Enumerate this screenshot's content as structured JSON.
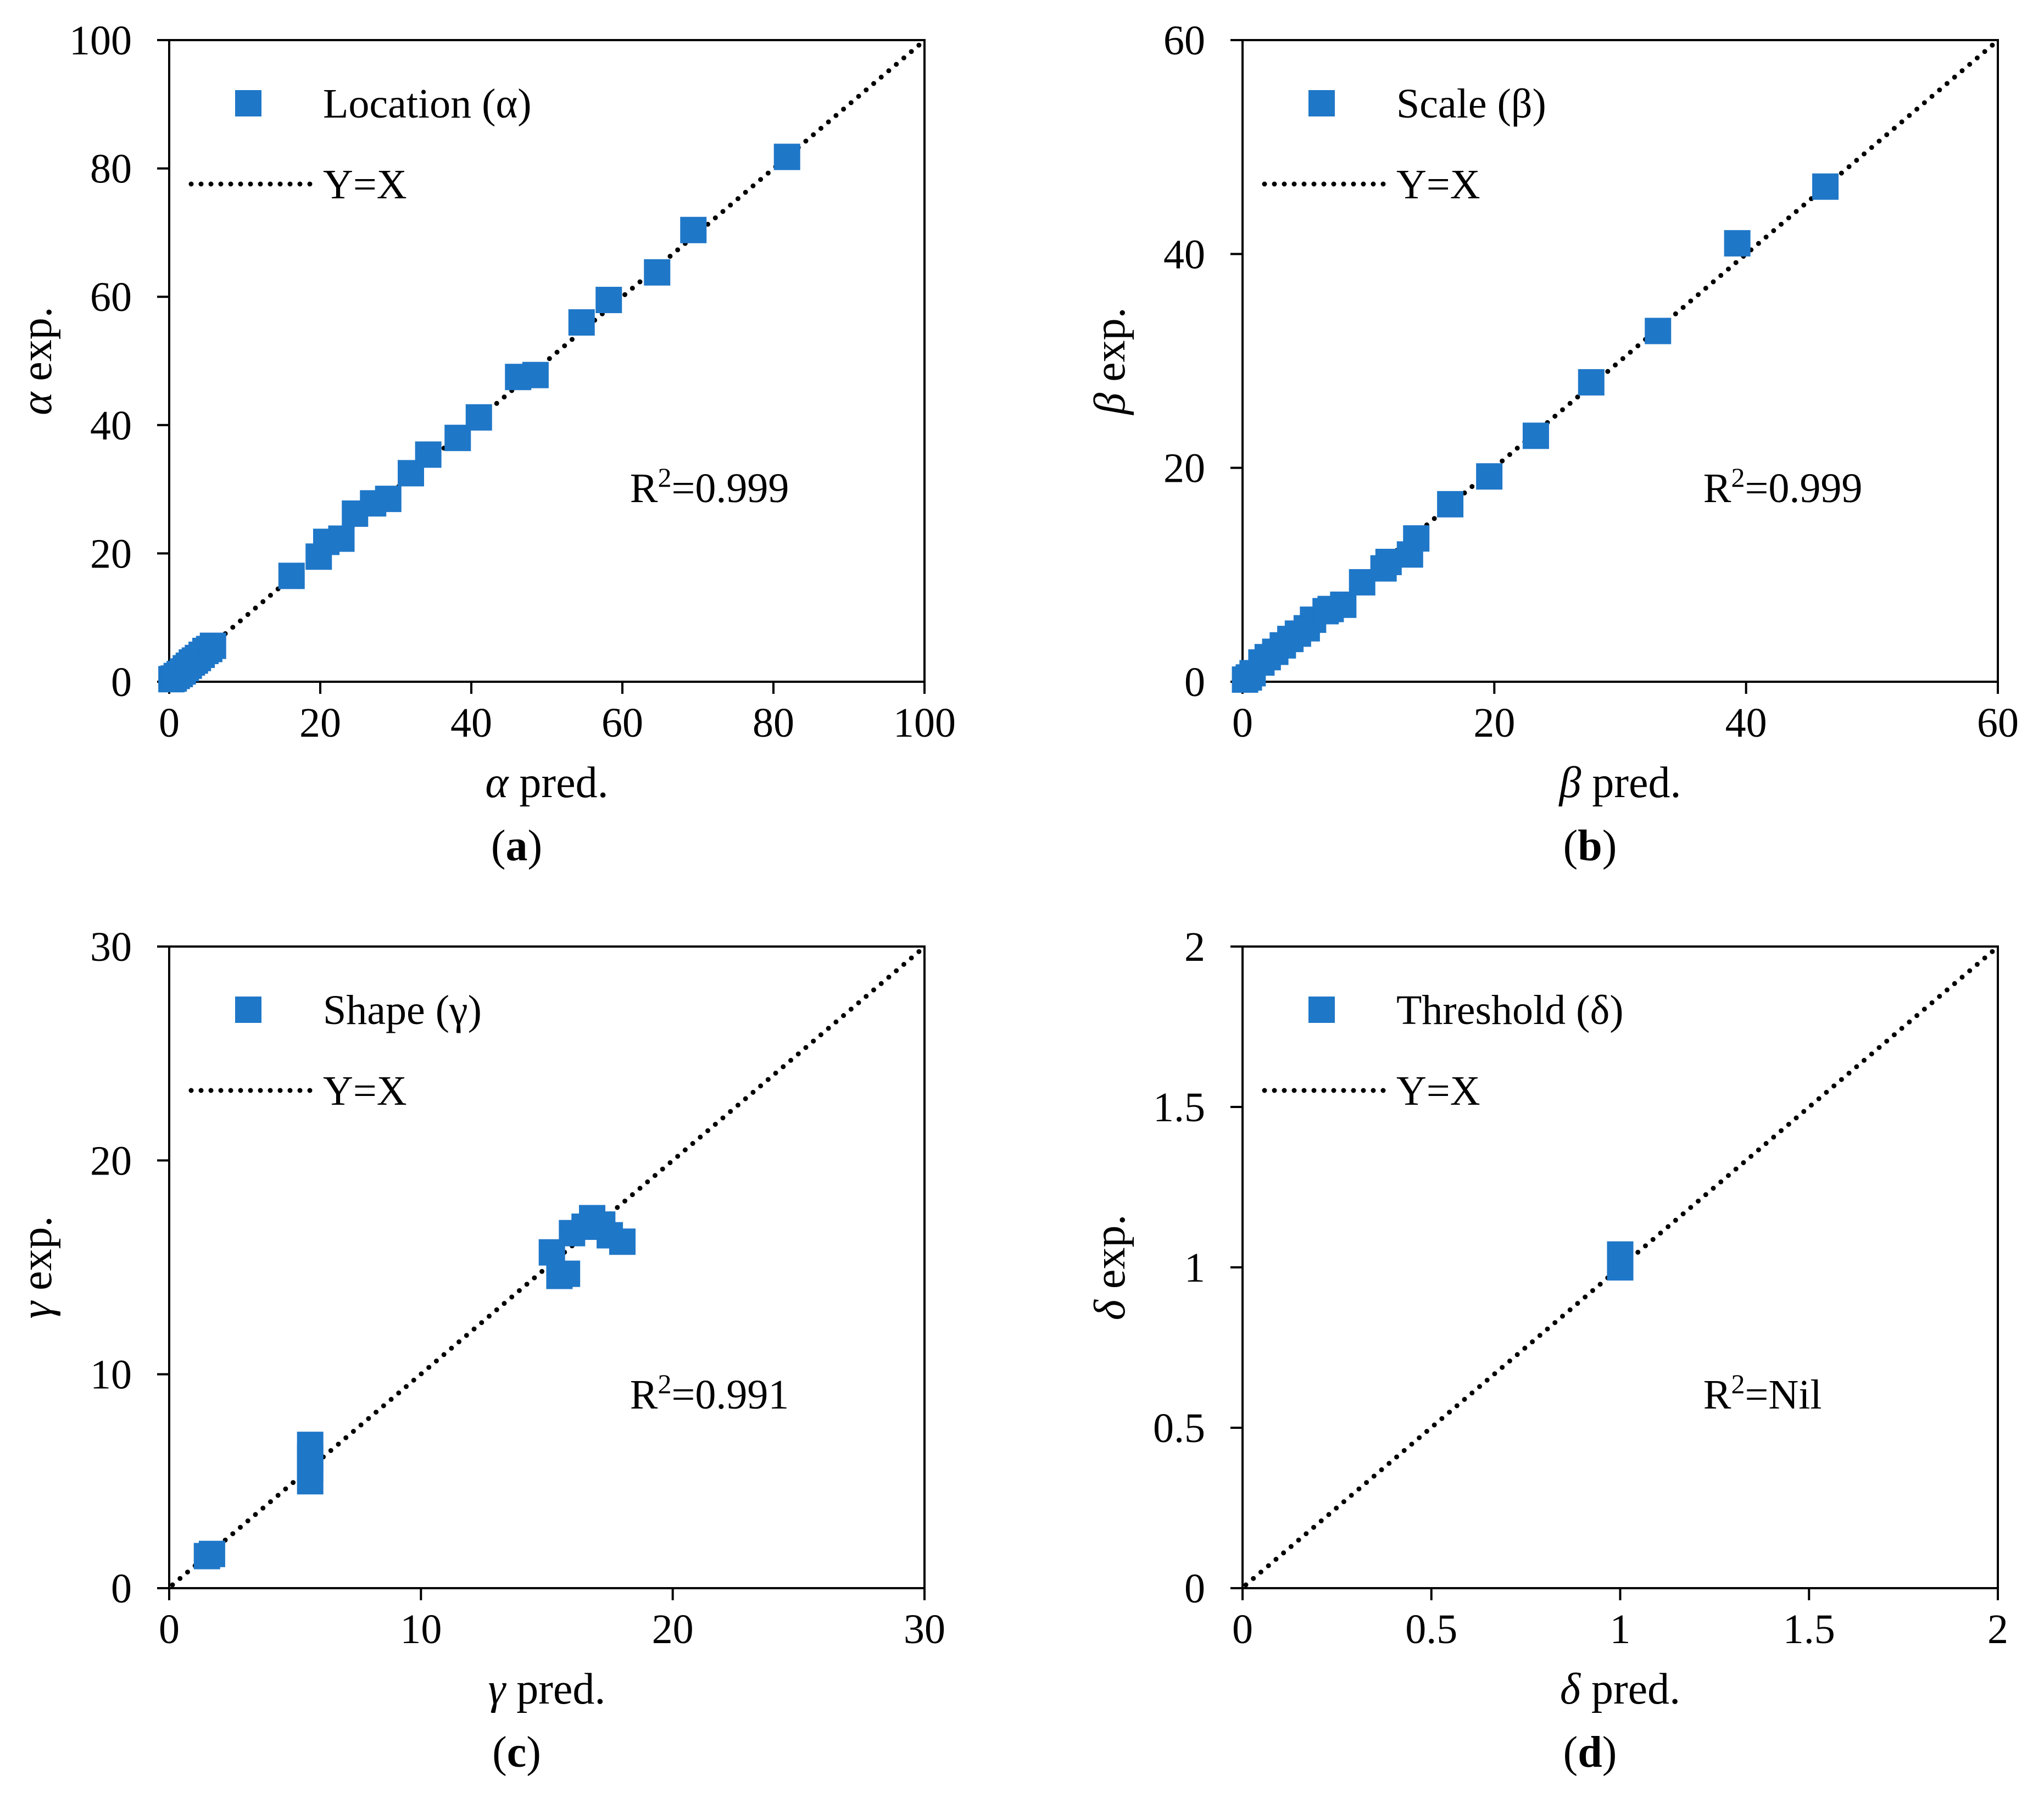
{
  "colors": {
    "marker": "#1f77c8",
    "axis": "#000000",
    "reference_line": "#000000"
  },
  "chart_data": [
    {
      "type": "scatter",
      "panel": "(a)",
      "panel_label": "a",
      "xlabel_symbol": "α",
      "xlabel_text": " pred.",
      "ylabel_symbol": "α",
      "ylabel_text": " exp.",
      "xlim": [
        0,
        100
      ],
      "ylim": [
        0,
        100
      ],
      "xticks": [
        0,
        20,
        40,
        60,
        80,
        100
      ],
      "yticks": [
        0,
        20,
        40,
        60,
        80,
        100
      ],
      "tick_labels_x": [
        "0",
        "20",
        "40",
        "60",
        "80",
        "100"
      ],
      "tick_labels_y": [
        "0",
        "20",
        "40",
        "60",
        "80",
        "100"
      ],
      "legend": {
        "series_label": "Location (α)",
        "line_label": "Y=X",
        "placement": "top-left"
      },
      "annotation": {
        "prefix": "R",
        "superscript": "2",
        "suffix": "=0.999"
      },
      "series": [
        {
          "name": "Location (α)",
          "points": [
            [
              0.3,
              0.4
            ],
            [
              0.6,
              0.5
            ],
            [
              1.0,
              0.9
            ],
            [
              1.4,
              1.2
            ],
            [
              1.8,
              1.6
            ],
            [
              2.2,
              2.1
            ],
            [
              2.6,
              2.5
            ],
            [
              3.0,
              3.0
            ],
            [
              3.4,
              3.3
            ],
            [
              3.8,
              3.7
            ],
            [
              4.3,
              4.2
            ],
            [
              4.8,
              4.8
            ],
            [
              5.3,
              5.1
            ],
            [
              5.8,
              5.6
            ],
            [
              16.2,
              16.5
            ],
            [
              19.8,
              19.5
            ],
            [
              20.8,
              21.8
            ],
            [
              22.8,
              22.3
            ],
            [
              24.6,
              26.2
            ],
            [
              27.0,
              27.8
            ],
            [
              29.0,
              28.5
            ],
            [
              32.0,
              32.5
            ],
            [
              34.3,
              35.4
            ],
            [
              38.2,
              38.0
            ],
            [
              41.0,
              41.2
            ],
            [
              46.2,
              47.5
            ],
            [
              48.5,
              47.8
            ],
            [
              54.6,
              56.0
            ],
            [
              58.2,
              59.5
            ],
            [
              64.6,
              63.8
            ],
            [
              69.4,
              70.4
            ],
            [
              81.8,
              81.8
            ]
          ]
        }
      ]
    },
    {
      "type": "scatter",
      "panel": "(b)",
      "panel_label": "b",
      "xlabel_symbol": "β",
      "xlabel_text": " pred.",
      "ylabel_symbol": "β",
      "ylabel_text": " exp.",
      "xlim": [
        0,
        60
      ],
      "ylim": [
        0,
        60
      ],
      "xticks": [
        0,
        20,
        40,
        60
      ],
      "yticks": [
        0,
        20,
        40,
        60
      ],
      "tick_labels_x": [
        "0",
        "20",
        "40",
        "60"
      ],
      "tick_labels_y": [
        "0",
        "20",
        "40",
        "60"
      ],
      "legend": {
        "series_label": "Scale (β)",
        "line_label": "Y=X",
        "placement": "top-left"
      },
      "annotation": {
        "prefix": "R",
        "superscript": "2",
        "suffix": "=0.999"
      },
      "series": [
        {
          "name": "Scale (β)",
          "points": [
            [
              0.2,
              0.2
            ],
            [
              0.5,
              0.4
            ],
            [
              0.8,
              0.8
            ],
            [
              1.5,
              1.8
            ],
            [
              2.0,
              2.3
            ],
            [
              2.6,
              2.8
            ],
            [
              3.2,
              3.4
            ],
            [
              3.8,
              4.0
            ],
            [
              4.4,
              4.5
            ],
            [
              5.1,
              5.0
            ],
            [
              5.6,
              5.8
            ],
            [
              6.6,
              6.6
            ],
            [
              7.0,
              6.8
            ],
            [
              8.0,
              7.2
            ],
            [
              9.5,
              9.3
            ],
            [
              11.2,
              10.6
            ],
            [
              11.6,
              11.2
            ],
            [
              13.3,
              11.9
            ],
            [
              13.8,
              13.4
            ],
            [
              16.5,
              16.6
            ],
            [
              19.6,
              19.2
            ],
            [
              23.3,
              23.0
            ],
            [
              27.7,
              28.0
            ],
            [
              33.0,
              32.8
            ],
            [
              39.3,
              41.0
            ],
            [
              46.3,
              46.3
            ]
          ]
        }
      ]
    },
    {
      "type": "scatter",
      "panel": "(c)",
      "panel_label": "c",
      "xlabel_symbol": "γ",
      "xlabel_text": " pred.",
      "ylabel_symbol": "γ",
      "ylabel_text": " exp.",
      "xlim": [
        0,
        30
      ],
      "ylim": [
        0,
        30
      ],
      "xticks": [
        0,
        10,
        20,
        30
      ],
      "yticks": [
        0,
        10,
        20,
        30
      ],
      "tick_labels_x": [
        "0",
        "10",
        "20",
        "30"
      ],
      "tick_labels_y": [
        "0",
        "10",
        "20",
        "30"
      ],
      "legend": {
        "series_label": "Shape (γ)",
        "line_label": "Y=X",
        "placement": "top-left"
      },
      "annotation": {
        "prefix": "R",
        "superscript": "2",
        "suffix": "=0.991"
      },
      "series": [
        {
          "name": "Shape (γ)",
          "points": [
            [
              1.5,
              1.5
            ],
            [
              1.7,
              1.6
            ],
            [
              5.6,
              5.0
            ],
            [
              5.6,
              5.6
            ],
            [
              5.6,
              6.1
            ],
            [
              5.6,
              6.7
            ],
            [
              15.2,
              15.7
            ],
            [
              15.5,
              14.6
            ],
            [
              15.8,
              14.7
            ],
            [
              16.0,
              16.6
            ],
            [
              16.5,
              16.9
            ],
            [
              16.8,
              17.3
            ],
            [
              17.2,
              17.0
            ],
            [
              17.5,
              16.5
            ],
            [
              18.0,
              16.2
            ]
          ]
        }
      ]
    },
    {
      "type": "scatter",
      "panel": "(d)",
      "panel_label": "d",
      "xlabel_symbol": "δ",
      "xlabel_text": " pred.",
      "ylabel_symbol": "δ",
      "ylabel_text": " exp.",
      "xlim": [
        0,
        2
      ],
      "ylim": [
        0,
        2
      ],
      "xticks": [
        0,
        0.5,
        1,
        1.5,
        2
      ],
      "yticks": [
        0,
        0.5,
        1,
        1.5,
        2
      ],
      "tick_labels_x": [
        "0",
        "0.5",
        "1",
        "1.5",
        "2"
      ],
      "tick_labels_y": [
        "0",
        "0.5",
        "1",
        "1.5",
        "2"
      ],
      "legend": {
        "series_label": "Threshold (δ)",
        "line_label": "Y=X",
        "placement": "top-left"
      },
      "annotation": {
        "prefix": "R",
        "superscript": "2",
        "suffix": "=Nil"
      },
      "series": [
        {
          "name": "Threshold (δ)",
          "points": [
            [
              1.0,
              1.0
            ],
            [
              1.0,
              1.02
            ],
            [
              1.0,
              1.04
            ]
          ]
        }
      ]
    }
  ]
}
